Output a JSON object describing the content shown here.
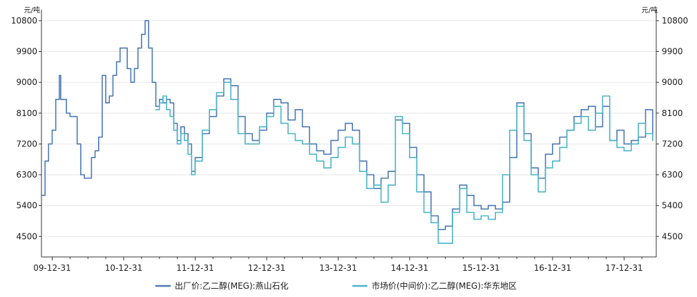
{
  "chart_data": {
    "type": "line",
    "unit_left": "元/吨",
    "unit_right": "元/吨",
    "ylim": [
      3900,
      11000
    ],
    "y_ticks": [
      4500,
      5400,
      6300,
      7200,
      8100,
      9000,
      9900,
      10800
    ],
    "x_ticks": [
      "09-12-31",
      "10-12-31",
      "11-12-31",
      "12-12-31",
      "13-12-31",
      "14-12-31",
      "15-12-31",
      "16-12-31",
      "17-12-31"
    ],
    "xlim": [
      2009.85,
      2018.45
    ],
    "grid": true,
    "legend_position": "bottom",
    "colors": {
      "series1": "#4a78b4",
      "series2": "#4ab4c8",
      "axis": "#333333",
      "grid": "#e6e6e6"
    },
    "series": [
      {
        "name": "出厂价:乙二醇(MEG):燕山石化",
        "x": [
          2009.86,
          2009.9,
          2009.95,
          2010.0,
          2010.05,
          2010.1,
          2010.12,
          2010.15,
          2010.2,
          2010.25,
          2010.3,
          2010.35,
          2010.4,
          2010.45,
          2010.5,
          2010.55,
          2010.6,
          2010.65,
          2010.7,
          2010.75,
          2010.8,
          2010.85,
          2010.9,
          2010.95,
          2011.0,
          2011.05,
          2011.1,
          2011.15,
          2011.2,
          2011.25,
          2011.3,
          2011.35,
          2011.4,
          2011.45,
          2011.5,
          2011.55,
          2011.6,
          2011.65,
          2011.7,
          2011.75,
          2011.8,
          2011.85,
          2011.9,
          2011.95,
          2012.0,
          2012.1,
          2012.2,
          2012.3,
          2012.4,
          2012.5,
          2012.6,
          2012.7,
          2012.8,
          2012.9,
          2013.0,
          2013.1,
          2013.2,
          2013.3,
          2013.4,
          2013.5,
          2013.6,
          2013.7,
          2013.8,
          2013.9,
          2014.0,
          2014.1,
          2014.2,
          2014.3,
          2014.4,
          2014.5,
          2014.6,
          2014.7,
          2014.8,
          2014.9,
          2015.0,
          2015.1,
          2015.2,
          2015.3,
          2015.4,
          2015.5,
          2015.6,
          2015.7,
          2015.8,
          2015.9,
          2016.0,
          2016.1,
          2016.2,
          2016.3,
          2016.4,
          2016.5,
          2016.6,
          2016.7,
          2016.8,
          2016.9,
          2017.0,
          2017.1,
          2017.2,
          2017.3,
          2017.4,
          2017.5,
          2017.6,
          2017.7,
          2017.8,
          2017.9,
          2018.0,
          2018.1,
          2018.2,
          2018.3,
          2018.4
        ],
        "values": [
          5700,
          6700,
          7200,
          7600,
          8500,
          9200,
          8500,
          8500,
          8100,
          8000,
          8000,
          7200,
          6300,
          6200,
          6200,
          6800,
          7000,
          7400,
          9200,
          8400,
          8600,
          9200,
          9600,
          10000,
          10000,
          9400,
          9000,
          9400,
          10000,
          10400,
          10800,
          10000,
          9000,
          8300,
          8500,
          8400,
          8500,
          8400,
          7800,
          7300,
          7700,
          7500,
          7200,
          6400,
          6800,
          7500,
          8000,
          8600,
          9100,
          8900,
          8000,
          7500,
          7300,
          7600,
          8100,
          8500,
          8400,
          7900,
          8200,
          7700,
          7200,
          7000,
          6900,
          7300,
          7600,
          7800,
          7600,
          6700,
          6300,
          5900,
          6200,
          6400,
          7900,
          7800,
          7100,
          6300,
          5800,
          5100,
          4700,
          4800,
          5300,
          6000,
          5700,
          5400,
          5300,
          5400,
          5300,
          5500,
          6800,
          8400,
          7500,
          6500,
          6200,
          6900,
          7200,
          7400,
          7600,
          8000,
          8200,
          8300,
          7700,
          8300,
          7300,
          7600,
          7200,
          7300,
          7400,
          8200,
          7500
        ],
        "values_desc": "approximate readings from the plotted line"
      },
      {
        "name": "市场价(中间价):乙二醇(MEG):华东地区",
        "x": [
          2011.45,
          2011.5,
          2011.55,
          2011.6,
          2011.65,
          2011.7,
          2011.75,
          2011.8,
          2011.85,
          2011.9,
          2011.95,
          2012.0,
          2012.1,
          2012.2,
          2012.3,
          2012.4,
          2012.5,
          2012.6,
          2012.7,
          2012.8,
          2012.9,
          2013.0,
          2013.1,
          2013.2,
          2013.3,
          2013.4,
          2013.5,
          2013.6,
          2013.7,
          2013.8,
          2013.9,
          2014.0,
          2014.1,
          2014.2,
          2014.3,
          2014.4,
          2014.5,
          2014.6,
          2014.7,
          2014.8,
          2014.9,
          2015.0,
          2015.1,
          2015.2,
          2015.3,
          2015.4,
          2015.5,
          2015.6,
          2015.7,
          2015.8,
          2015.9,
          2016.0,
          2016.1,
          2016.2,
          2016.3,
          2016.4,
          2016.5,
          2016.6,
          2016.7,
          2016.8,
          2016.9,
          2017.0,
          2017.1,
          2017.2,
          2017.3,
          2017.4,
          2017.5,
          2017.6,
          2017.7,
          2017.8,
          2017.9,
          2018.0,
          2018.1,
          2018.2,
          2018.3,
          2018.4
        ],
        "values": [
          8200,
          8400,
          8600,
          8200,
          8000,
          7600,
          7200,
          7500,
          7300,
          6900,
          6300,
          6700,
          7600,
          8200,
          8700,
          9000,
          8500,
          7500,
          7200,
          7200,
          7700,
          8000,
          8300,
          7800,
          7500,
          7300,
          7200,
          6900,
          6700,
          6500,
          6800,
          7100,
          7400,
          7200,
          6400,
          5900,
          6000,
          5500,
          6000,
          8000,
          7500,
          6800,
          5800,
          5200,
          4900,
          4300,
          4300,
          5200,
          5900,
          5200,
          5000,
          5100,
          5000,
          5200,
          6300,
          7600,
          8300,
          7300,
          6300,
          5800,
          6500,
          6700,
          7100,
          7600,
          7800,
          8000,
          7600,
          8100,
          8600,
          7300,
          7100,
          7000,
          7200,
          7800,
          7500,
          7300
        ],
        "values_desc": "approximate readings from the plotted line"
      }
    ]
  }
}
